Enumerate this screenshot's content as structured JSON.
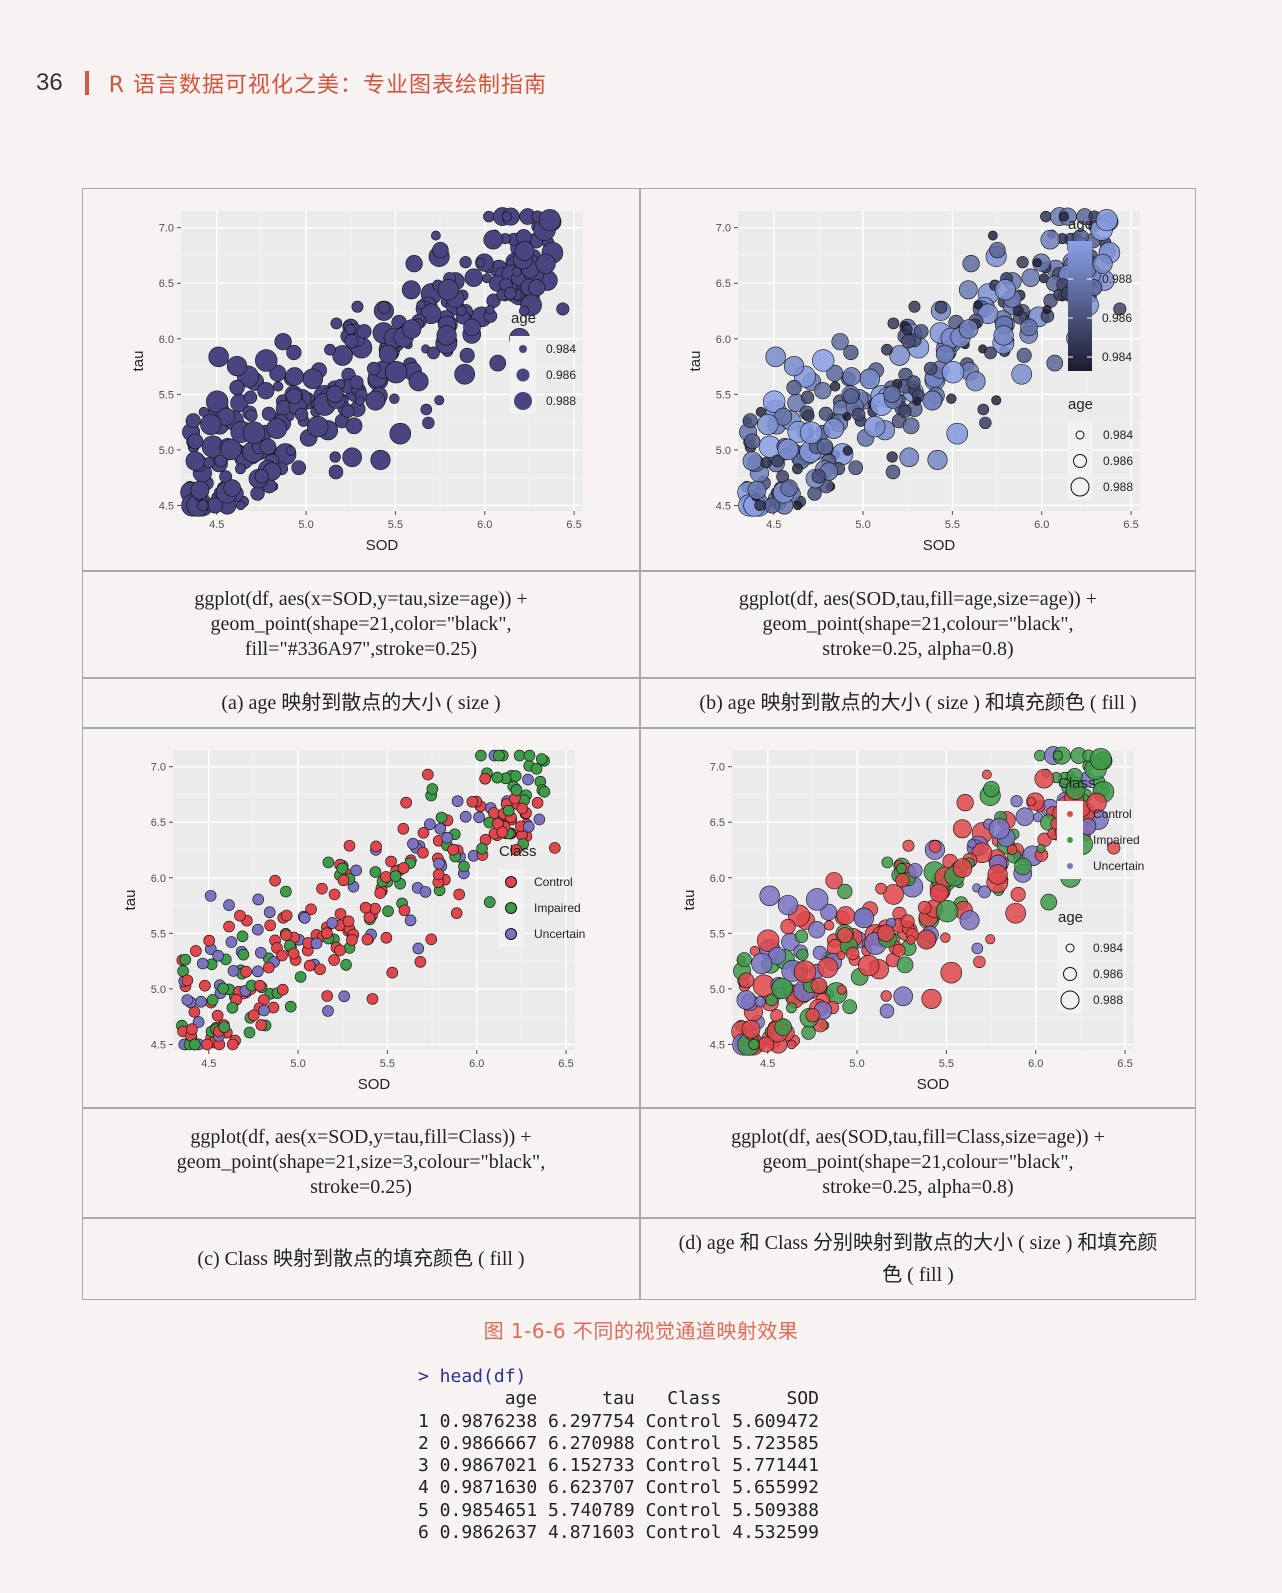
{
  "header": {
    "page_number": "36",
    "book_title": "R 语言数据可视化之美：专业图表绘制指南"
  },
  "figure": {
    "caption": "图 1-6-6   不同的视觉通道映射效果",
    "panels": [
      {
        "id": "a",
        "code": "ggplot(df, aes(x=SOD,y=tau,size=age)) +\ngeom_point(shape=21,color=\"black\",\nfill=\"#336A97\",stroke=0.25)",
        "caption": "(a) age 映射到散点的大小 ( size )"
      },
      {
        "id": "b",
        "code": "ggplot(df, aes(SOD,tau,fill=age,size=age)) +\ngeom_point(shape=21,colour=\"black\",\nstroke=0.25, alpha=0.8)",
        "caption": "(b) age 映射到散点的大小 ( size ) 和填充颜色 ( fill )"
      },
      {
        "id": "c",
        "code": "ggplot(df, aes(x=SOD,y=tau,fill=Class)) +\ngeom_point(shape=21,size=3,colour=\"black\",\nstroke=0.25)",
        "caption": "(c) Class 映射到散点的填充颜色 ( fill )"
      },
      {
        "id": "d",
        "code": "ggplot(df, aes(SOD,tau,fill=Class,size=age)) +\ngeom_point(shape=21,colour=\"black\",\nstroke=0.25, alpha=0.8)",
        "caption": "(d) age 和 Class 分别映射到散点的大小 ( size ) 和填充颜色 ( fill )"
      }
    ]
  },
  "chart_data": [
    {
      "type": "scatter",
      "xlabel": "SOD",
      "ylabel": "tau",
      "xlim": [
        4.3,
        6.55
      ],
      "ylim": [
        4.45,
        7.15
      ],
      "xticks": [
        "4.5",
        "5.0",
        "5.5",
        "6.0",
        "6.5"
      ],
      "yticks": [
        "4.5",
        "5.0",
        "5.5",
        "6.0",
        "6.5",
        "7.0"
      ],
      "grid": true,
      "panel_background": "#ebebeb",
      "point_fill": "#494580",
      "legends": [
        {
          "title": "age",
          "kind": "size",
          "labels": [
            "0.984",
            "0.986",
            "0.988"
          ]
        }
      ],
      "encoding": "size=age"
    },
    {
      "type": "scatter",
      "xlabel": "SOD",
      "ylabel": "tau",
      "xlim": [
        4.3,
        6.55
      ],
      "ylim": [
        4.45,
        7.15
      ],
      "xticks": [
        "4.5",
        "5.0",
        "5.5",
        "6.0",
        "6.5"
      ],
      "yticks": [
        "4.5",
        "5.0",
        "5.5",
        "6.0",
        "6.5",
        "7.0"
      ],
      "grid": true,
      "panel_background": "#ebebeb",
      "colorbar": {
        "low": "#1c1b2e",
        "high": "#8aa0e8"
      },
      "legends": [
        {
          "title": "age",
          "kind": "colorbar",
          "labels": [
            "0.988",
            "0.986",
            "0.984"
          ]
        },
        {
          "title": "age",
          "kind": "size",
          "labels": [
            "0.984",
            "0.986",
            "0.988"
          ]
        }
      ],
      "encoding": "fill=age, size=age"
    },
    {
      "type": "scatter",
      "xlabel": "SOD",
      "ylabel": "tau",
      "xlim": [
        4.3,
        6.55
      ],
      "ylim": [
        4.45,
        7.15
      ],
      "xticks": [
        "4.5",
        "5.0",
        "5.5",
        "6.0",
        "6.5"
      ],
      "yticks": [
        "4.5",
        "5.0",
        "5.5",
        "6.0",
        "6.5",
        "7.0"
      ],
      "grid": true,
      "panel_background": "#ebebeb",
      "class_colors": {
        "Control": "#e0464b",
        "Impaired": "#3f9a4a",
        "Uncertain": "#7a73c2"
      },
      "legends": [
        {
          "title": "Class",
          "kind": "fill",
          "labels": [
            "Control",
            "Impaired",
            "Uncertain"
          ]
        }
      ],
      "encoding": "fill=Class"
    },
    {
      "type": "scatter",
      "xlabel": "SOD",
      "ylabel": "tau",
      "xlim": [
        4.3,
        6.55
      ],
      "ylim": [
        4.45,
        7.15
      ],
      "xticks": [
        "4.5",
        "5.0",
        "5.5",
        "6.0",
        "6.5"
      ],
      "yticks": [
        "4.5",
        "5.0",
        "5.5",
        "6.0",
        "6.5",
        "7.0"
      ],
      "grid": true,
      "panel_background": "#ebebeb",
      "class_colors": {
        "Control": "#e0464b",
        "Impaired": "#3f9a4a",
        "Uncertain": "#7a73c2"
      },
      "legends": [
        {
          "title": "Class",
          "kind": "fill",
          "labels": [
            "Control",
            "Impaired",
            "Uncertain"
          ]
        },
        {
          "title": "age",
          "kind": "size",
          "labels": [
            "0.984",
            "0.986",
            "0.988"
          ]
        }
      ],
      "encoding": "fill=Class, size=age"
    }
  ],
  "console": {
    "command": "> head(df)",
    "columns": [
      "age",
      "tau",
      "Class",
      "SOD"
    ],
    "rows": [
      [
        "1",
        "0.9876238",
        "6.297754",
        "Control",
        "5.609472"
      ],
      [
        "2",
        "0.9866667",
        "6.270988",
        "Control",
        "5.723585"
      ],
      [
        "3",
        "0.9867021",
        "6.152733",
        "Control",
        "5.771441"
      ],
      [
        "4",
        "0.9871630",
        "6.623707",
        "Control",
        "5.655992"
      ],
      [
        "5",
        "0.9854651",
        "5.740789",
        "Control",
        "5.509388"
      ],
      [
        "6",
        "0.9862637",
        "4.871603",
        "Control",
        "4.532599"
      ]
    ]
  }
}
